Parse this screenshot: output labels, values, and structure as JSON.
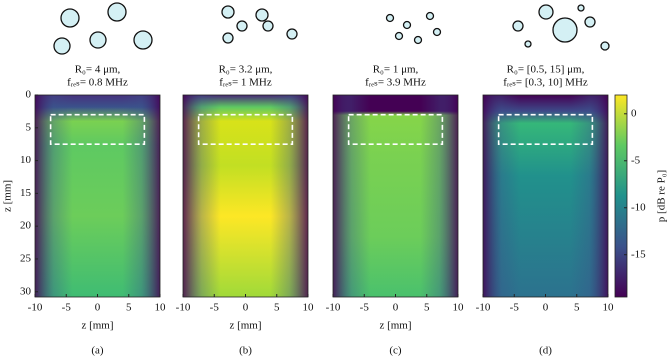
{
  "chart_data": [
    {
      "type": "heatmap",
      "title": [
        "R₀= 4 μm,",
        "fᵣₑₛ= 0.8 MHz"
      ],
      "xlabel": "z [mm]",
      "ylabel": "z [mm]",
      "caption": "(a)",
      "xlim": [
        -10,
        10
      ],
      "xticks": [
        -10,
        -5,
        0,
        5,
        10
      ],
      "ylim": [
        0,
        30.8
      ],
      "yticks": [
        0,
        5,
        10,
        15,
        20,
        25,
        30
      ],
      "box": [
        -7.5,
        7.5,
        3,
        7.5
      ]
    },
    {
      "type": "heatmap",
      "title": [
        "R₀= 3.2 μm,",
        "fᵣₑₛ= 1 MHz"
      ],
      "xlabel": "z [mm]",
      "caption": "(b)",
      "xlim": [
        -10,
        10
      ],
      "xticks": [
        -10,
        -5,
        0,
        5,
        10
      ],
      "ylim": [
        0,
        30.8
      ],
      "box": [
        -7.5,
        7.5,
        3,
        7.5
      ]
    },
    {
      "type": "heatmap",
      "title": [
        "R₀= 1 μm,",
        "fᵣₑₛ= 3.9 MHz"
      ],
      "xlabel": "z [mm]",
      "caption": "(c)",
      "xlim": [
        -10,
        10
      ],
      "xticks": [
        -10,
        -5,
        0,
        5,
        10
      ],
      "ylim": [
        0,
        30.8
      ],
      "box": [
        -7.5,
        7.5,
        3,
        7.5
      ]
    },
    {
      "type": "heatmap",
      "title": [
        "R₀= [0.5, 15] μm,",
        "fᵣₑₛ= [0.3, 10] MHz"
      ],
      "caption": "(d)",
      "xlim": [
        -10,
        10
      ],
      "xticks": [
        -10,
        -5,
        0,
        5,
        10
      ],
      "ylim": [
        0,
        30.8
      ],
      "box": [
        -7.5,
        7.5,
        3,
        7.5
      ],
      "colorbar": {
        "label": "p [dB re P₀]",
        "lim": [
          -19.5,
          2
        ],
        "ticks": [
          0,
          -5,
          -10,
          -15
        ]
      }
    }
  ]
}
